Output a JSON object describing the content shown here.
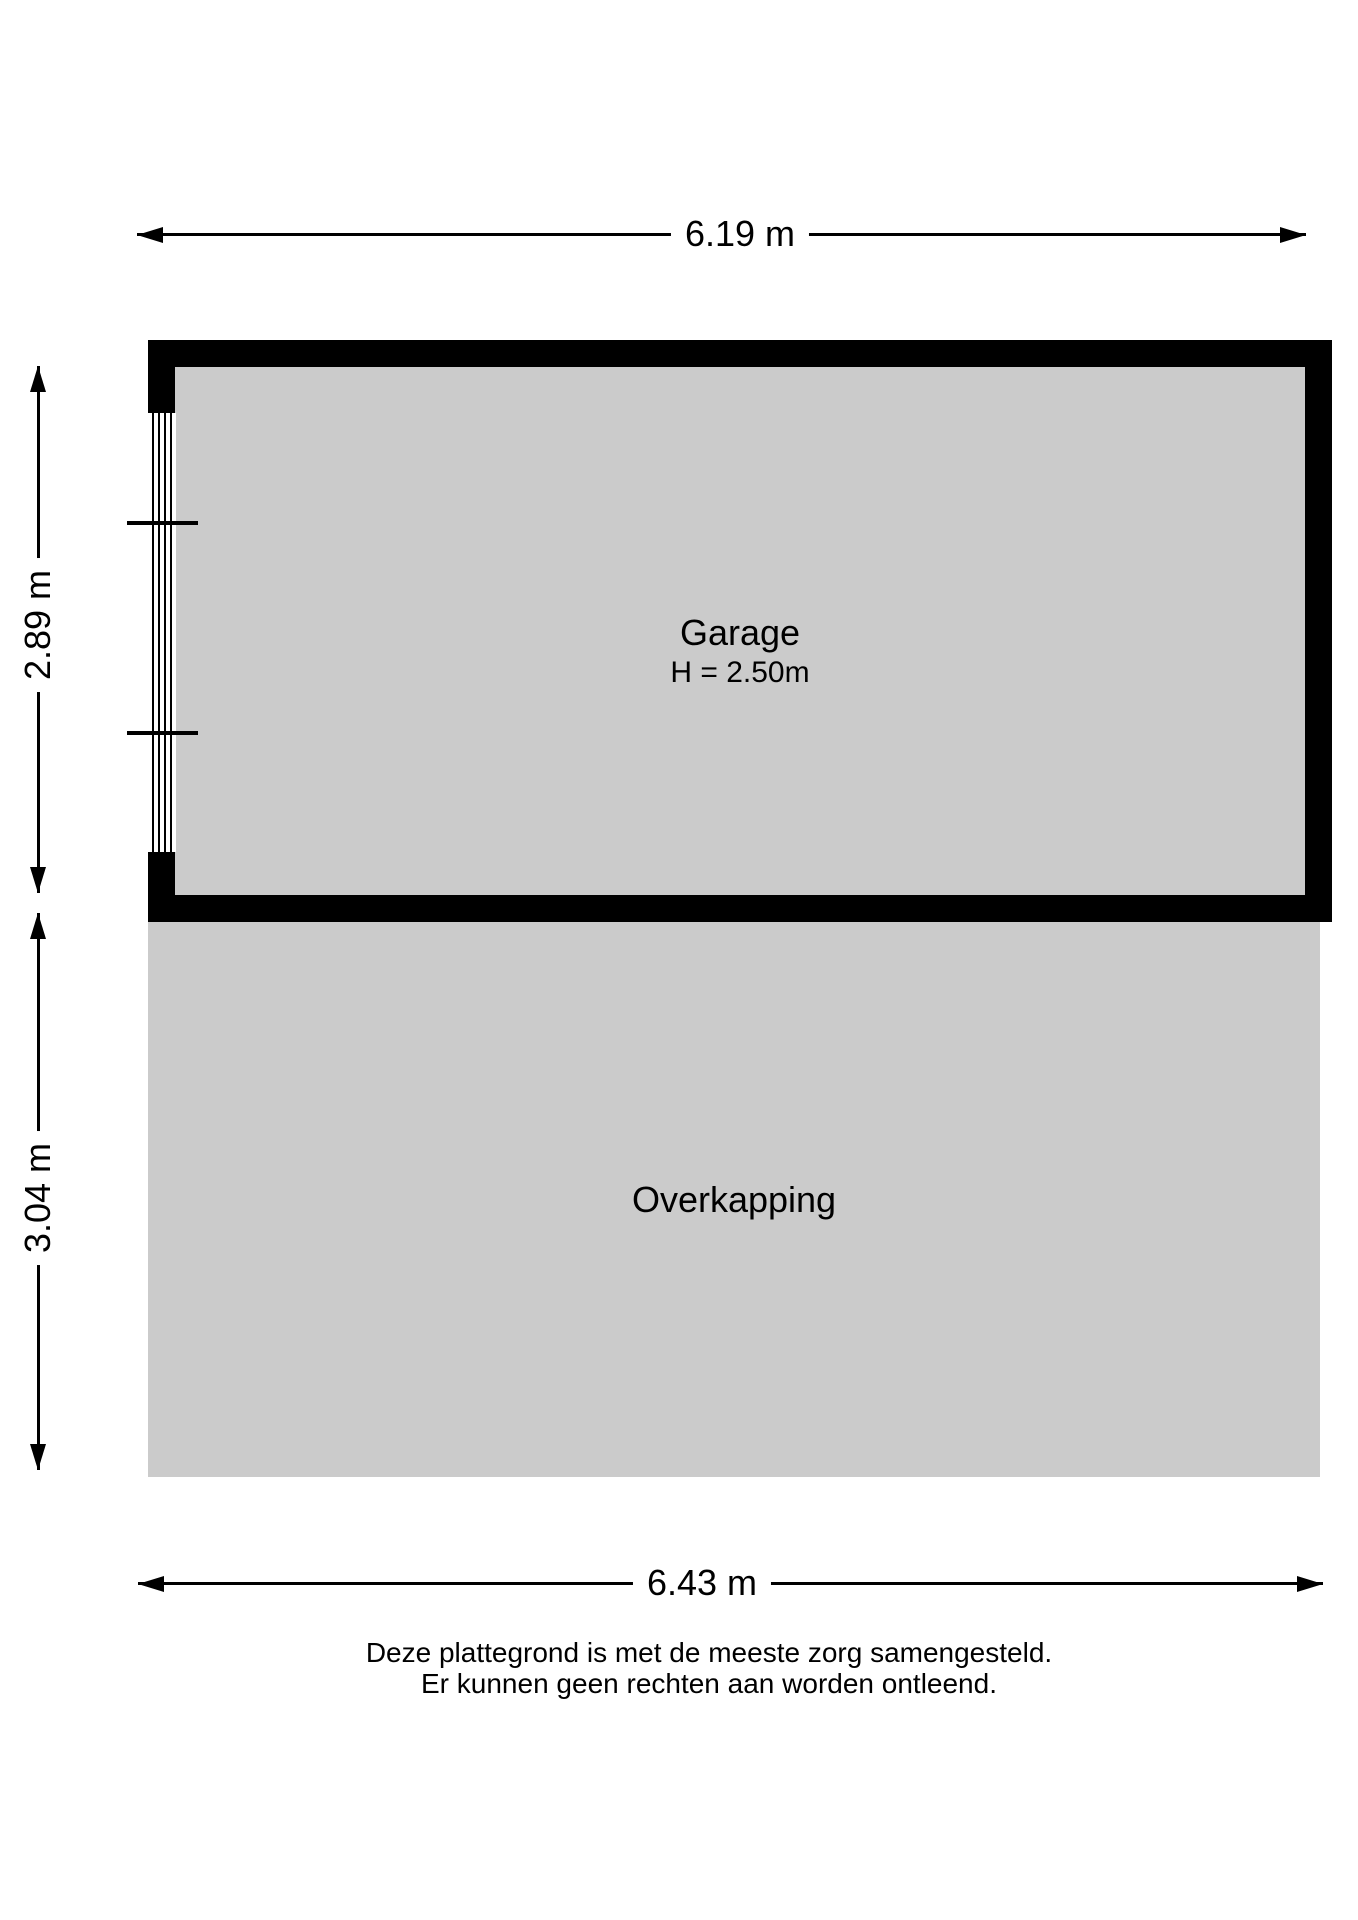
{
  "colors": {
    "floor": "#cbcbcb",
    "wall": "#000000",
    "line": "#000000"
  },
  "plan": {
    "rooms": [
      {
        "label": "Garage",
        "height": "H = 2.50m"
      },
      {
        "label": "Overkapping"
      }
    ],
    "dimensions": {
      "garage_width": "6.19 m",
      "garage_depth": "2.89 m",
      "overkapping_depth": "3.04 m",
      "overkapping_width": "6.43 m"
    },
    "disclaimer": {
      "line1": "Deze plattegrond is met de meeste zorg samengesteld.",
      "line2": "Er kunnen geen rechten aan worden ontleend."
    }
  }
}
